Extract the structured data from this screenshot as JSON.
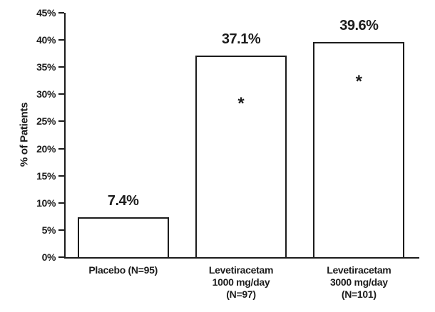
{
  "chart_data": {
    "type": "bar",
    "title": "",
    "xlabel": "",
    "ylabel": "% of Patients",
    "ylim": [
      0,
      45
    ],
    "ytick_values": [
      0,
      5,
      10,
      15,
      20,
      25,
      30,
      35,
      40,
      45
    ],
    "ytick_labels": [
      "0%",
      "5%",
      "10%",
      "15%",
      "20%",
      "25%",
      "30%",
      "35%",
      "40%",
      "45%"
    ],
    "grid": false,
    "legend": null,
    "bar_fill": "#ffffff",
    "bar_border": "#1c1c1c",
    "categories": [
      [
        "Placebo (N=95)"
      ],
      [
        "Levetiracetam",
        "1000 mg/day",
        "(N=97)"
      ],
      [
        "Levetiracetam",
        "3000 mg/day",
        "(N=101)"
      ]
    ],
    "values": [
      7.4,
      37.1,
      39.6
    ],
    "value_labels": [
      "7.4%",
      "37.1%",
      "39.6%"
    ],
    "markers": [
      "",
      "*",
      "*"
    ],
    "marker_values": [
      null,
      28,
      32
    ]
  }
}
